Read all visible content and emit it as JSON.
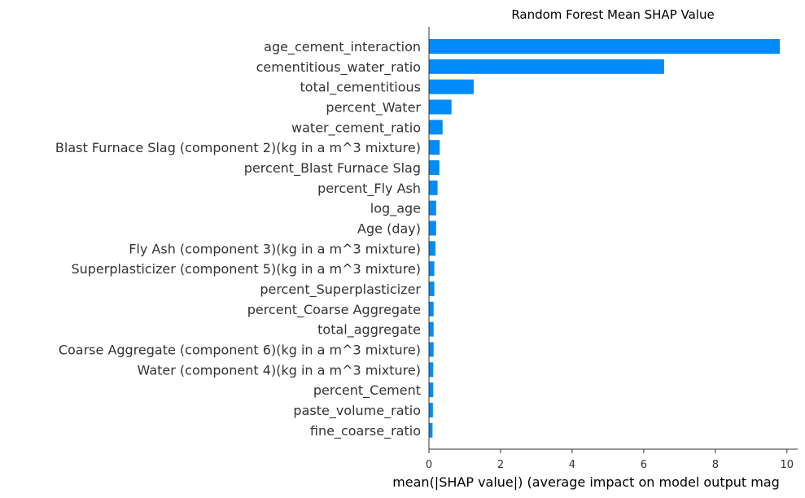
{
  "chart_data": {
    "type": "bar",
    "orientation": "horizontal",
    "title": "Random Forest Mean SHAP Value",
    "xlabel": "mean(|SHAP value|) (average impact on model output mag",
    "ylabel": "",
    "xlim": [
      0,
      10.3
    ],
    "xticks": [
      0,
      2,
      4,
      6,
      8,
      10
    ],
    "grid": false,
    "bar_color": "#008bfb",
    "categories": [
      "age_cement_interaction",
      "cementitious_water_ratio",
      "total_cementitious",
      "percent_Water",
      "water_cement_ratio",
      "Blast Furnace Slag (component 2)(kg in a m^3 mixture)",
      "percent_Blast Furnace Slag",
      "percent_Fly Ash",
      "log_age",
      "Age (day)",
      "Fly Ash (component 3)(kg in a m^3 mixture)",
      "Superplasticizer (component 5)(kg in a m^3 mixture)",
      "percent_Superplasticizer",
      "percent_Coarse Aggregate",
      "total_aggregate",
      "Coarse Aggregate  (component 6)(kg in a m^3 mixture)",
      "Water  (component 4)(kg in a m^3 mixture)",
      "percent_Cement",
      "paste_volume_ratio",
      "fine_coarse_ratio"
    ],
    "values": [
      9.8,
      6.57,
      1.25,
      0.63,
      0.38,
      0.3,
      0.29,
      0.24,
      0.2,
      0.2,
      0.18,
      0.15,
      0.15,
      0.13,
      0.13,
      0.13,
      0.12,
      0.12,
      0.11,
      0.1
    ]
  }
}
